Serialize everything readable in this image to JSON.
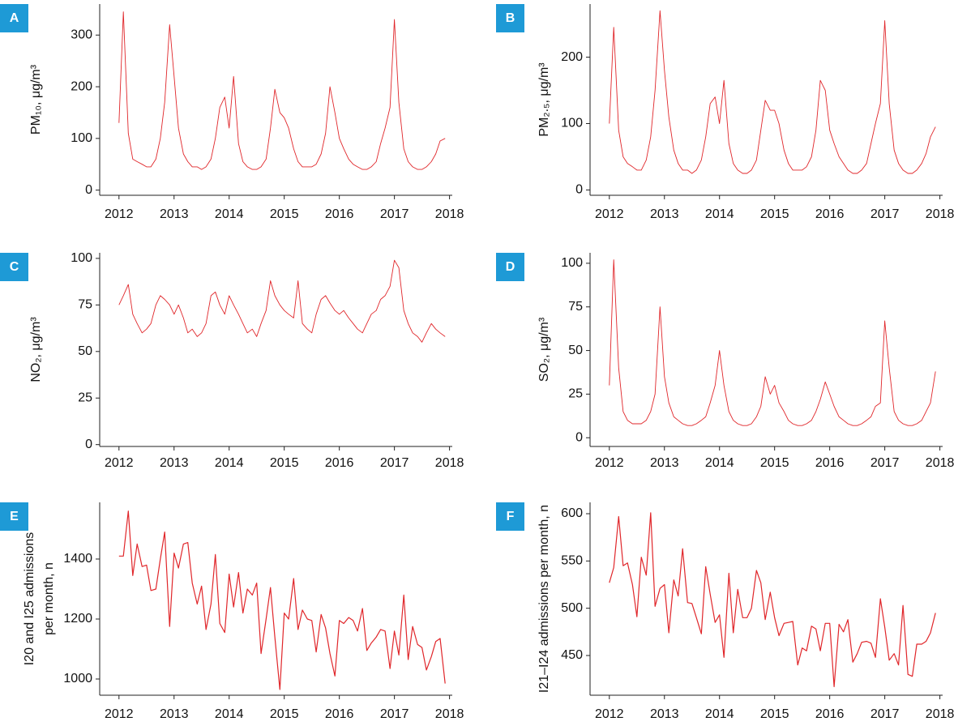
{
  "chart_data": [
    {
      "type": "line",
      "label": "A",
      "ylabel": "PM₁₀, μg/m³",
      "color": "#e0262a",
      "x": [
        2012,
        2012.08,
        2012.17,
        2012.25,
        2012.33,
        2012.42,
        2012.5,
        2012.58,
        2012.67,
        2012.75,
        2012.83,
        2012.92,
        2013,
        2013.08,
        2013.17,
        2013.25,
        2013.33,
        2013.42,
        2013.5,
        2013.58,
        2013.67,
        2013.75,
        2013.83,
        2013.92,
        2014,
        2014.08,
        2014.17,
        2014.25,
        2014.33,
        2014.42,
        2014.5,
        2014.58,
        2014.67,
        2014.75,
        2014.83,
        2014.92,
        2015,
        2015.08,
        2015.17,
        2015.25,
        2015.33,
        2015.42,
        2015.5,
        2015.58,
        2015.67,
        2015.75,
        2015.83,
        2015.92,
        2016,
        2016.08,
        2016.17,
        2016.25,
        2016.33,
        2016.42,
        2016.5,
        2016.58,
        2016.67,
        2016.75,
        2016.83,
        2016.92,
        2017,
        2017.08,
        2017.17,
        2017.25,
        2017.33,
        2017.42,
        2017.5,
        2017.58,
        2017.67,
        2017.75,
        2017.83,
        2017.92
      ],
      "values": [
        130,
        345,
        110,
        60,
        55,
        50,
        45,
        45,
        60,
        100,
        170,
        320,
        220,
        120,
        70,
        55,
        45,
        45,
        40,
        45,
        60,
        100,
        160,
        180,
        120,
        220,
        90,
        55,
        45,
        40,
        40,
        45,
        60,
        120,
        195,
        150,
        140,
        120,
        80,
        55,
        45,
        45,
        45,
        50,
        70,
        110,
        200,
        150,
        100,
        80,
        60,
        50,
        45,
        40,
        40,
        45,
        55,
        90,
        120,
        160,
        330,
        170,
        80,
        55,
        45,
        40,
        40,
        45,
        55,
        70,
        95,
        100
      ],
      "xlim": [
        2011.65,
        2018.05
      ],
      "ylim": [
        -10,
        360
      ],
      "xticks": [
        2012,
        2013,
        2014,
        2015,
        2016,
        2017,
        2018
      ],
      "yticks": [
        0,
        100,
        200,
        300
      ]
    },
    {
      "type": "line",
      "label": "B",
      "ylabel": "PM₂.₅, μg/m³",
      "color": "#e0262a",
      "x": [
        2012,
        2012.08,
        2012.17,
        2012.25,
        2012.33,
        2012.42,
        2012.5,
        2012.58,
        2012.67,
        2012.75,
        2012.83,
        2012.92,
        2013,
        2013.08,
        2013.17,
        2013.25,
        2013.33,
        2013.42,
        2013.5,
        2013.58,
        2013.67,
        2013.75,
        2013.83,
        2013.92,
        2014,
        2014.08,
        2014.17,
        2014.25,
        2014.33,
        2014.42,
        2014.5,
        2014.58,
        2014.67,
        2014.75,
        2014.83,
        2014.92,
        2015,
        2015.08,
        2015.17,
        2015.25,
        2015.33,
        2015.42,
        2015.5,
        2015.58,
        2015.67,
        2015.75,
        2015.83,
        2015.92,
        2016,
        2016.08,
        2016.17,
        2016.25,
        2016.33,
        2016.42,
        2016.5,
        2016.58,
        2016.67,
        2016.75,
        2016.83,
        2016.92,
        2017,
        2017.08,
        2017.17,
        2017.25,
        2017.33,
        2017.42,
        2017.5,
        2017.58,
        2017.67,
        2017.75,
        2017.83,
        2017.92
      ],
      "values": [
        100,
        245,
        90,
        50,
        40,
        35,
        30,
        30,
        45,
        80,
        150,
        270,
        180,
        110,
        60,
        40,
        30,
        30,
        25,
        30,
        45,
        80,
        130,
        140,
        100,
        165,
        70,
        40,
        30,
        25,
        25,
        30,
        45,
        90,
        135,
        120,
        120,
        100,
        60,
        40,
        30,
        30,
        30,
        35,
        50,
        90,
        165,
        150,
        90,
        70,
        50,
        40,
        30,
        25,
        25,
        30,
        40,
        70,
        100,
        130,
        255,
        130,
        60,
        40,
        30,
        25,
        25,
        30,
        40,
        55,
        80,
        95
      ],
      "xlim": [
        2011.65,
        2018.05
      ],
      "ylim": [
        -8,
        280
      ],
      "xticks": [
        2012,
        2013,
        2014,
        2015,
        2016,
        2017,
        2018
      ],
      "yticks": [
        0,
        100,
        200
      ]
    },
    {
      "type": "line",
      "label": "C",
      "ylabel": "NO₂, μg/m³",
      "color": "#e0262a",
      "x": [
        2012,
        2012.08,
        2012.17,
        2012.25,
        2012.33,
        2012.42,
        2012.5,
        2012.58,
        2012.67,
        2012.75,
        2012.83,
        2012.92,
        2013,
        2013.08,
        2013.17,
        2013.25,
        2013.33,
        2013.42,
        2013.5,
        2013.58,
        2013.67,
        2013.75,
        2013.83,
        2013.92,
        2014,
        2014.08,
        2014.17,
        2014.25,
        2014.33,
        2014.42,
        2014.5,
        2014.58,
        2014.67,
        2014.75,
        2014.83,
        2014.92,
        2015,
        2015.08,
        2015.17,
        2015.25,
        2015.33,
        2015.42,
        2015.5,
        2015.58,
        2015.67,
        2015.75,
        2015.83,
        2015.92,
        2016,
        2016.08,
        2016.17,
        2016.25,
        2016.33,
        2016.42,
        2016.5,
        2016.58,
        2016.67,
        2016.75,
        2016.83,
        2016.92,
        2017,
        2017.08,
        2017.17,
        2017.25,
        2017.33,
        2017.42,
        2017.5,
        2017.58,
        2017.67,
        2017.75,
        2017.83,
        2017.92
      ],
      "values": [
        75,
        80,
        86,
        70,
        65,
        60,
        62,
        65,
        75,
        80,
        78,
        75,
        70,
        75,
        68,
        60,
        62,
        58,
        60,
        65,
        80,
        82,
        75,
        70,
        80,
        75,
        70,
        65,
        60,
        62,
        58,
        65,
        72,
        88,
        80,
        75,
        72,
        70,
        68,
        88,
        65,
        62,
        60,
        70,
        78,
        80,
        76,
        72,
        70,
        72,
        68,
        65,
        62,
        60,
        65,
        70,
        72,
        78,
        80,
        85,
        99,
        95,
        72,
        65,
        60,
        58,
        55,
        60,
        65,
        62,
        60,
        58
      ],
      "xlim": [
        2011.65,
        2018.05
      ],
      "ylim": [
        -1,
        103
      ],
      "xticks": [
        2012,
        2013,
        2014,
        2015,
        2016,
        2017,
        2018
      ],
      "yticks": [
        0,
        25,
        50,
        75,
        100
      ]
    },
    {
      "type": "line",
      "label": "D",
      "ylabel": "SO₂, μg/m³",
      "color": "#e0262a",
      "x": [
        2012,
        2012.08,
        2012.17,
        2012.25,
        2012.33,
        2012.42,
        2012.5,
        2012.58,
        2012.67,
        2012.75,
        2012.83,
        2012.92,
        2013,
        2013.08,
        2013.17,
        2013.25,
        2013.33,
        2013.42,
        2013.5,
        2013.58,
        2013.67,
        2013.75,
        2013.83,
        2013.92,
        2014,
        2014.08,
        2014.17,
        2014.25,
        2014.33,
        2014.42,
        2014.5,
        2014.58,
        2014.67,
        2014.75,
        2014.83,
        2014.92,
        2015,
        2015.08,
        2015.17,
        2015.25,
        2015.33,
        2015.42,
        2015.5,
        2015.58,
        2015.67,
        2015.75,
        2015.83,
        2015.92,
        2016,
        2016.08,
        2016.17,
        2016.25,
        2016.33,
        2016.42,
        2016.5,
        2016.58,
        2016.67,
        2016.75,
        2016.83,
        2016.92,
        2017,
        2017.08,
        2017.17,
        2017.25,
        2017.33,
        2017.42,
        2017.5,
        2017.58,
        2017.67,
        2017.75,
        2017.83,
        2017.92
      ],
      "values": [
        30,
        102,
        40,
        15,
        10,
        8,
        8,
        8,
        10,
        15,
        25,
        75,
        35,
        20,
        12,
        10,
        8,
        7,
        7,
        8,
        10,
        12,
        20,
        30,
        50,
        30,
        15,
        10,
        8,
        7,
        7,
        8,
        12,
        18,
        35,
        25,
        30,
        20,
        15,
        10,
        8,
        7,
        7,
        8,
        10,
        15,
        22,
        32,
        25,
        18,
        12,
        10,
        8,
        7,
        7,
        8,
        10,
        12,
        18,
        20,
        67,
        40,
        15,
        10,
        8,
        7,
        7,
        8,
        10,
        15,
        20,
        38
      ],
      "xlim": [
        2011.65,
        2018.05
      ],
      "ylim": [
        -5,
        106
      ],
      "xticks": [
        2012,
        2013,
        2014,
        2015,
        2016,
        2017,
        2018
      ],
      "yticks": [
        0,
        25,
        50,
        75,
        100
      ]
    },
    {
      "type": "line",
      "label": "E",
      "ylabel": [
        "I20 and I25 admissions",
        "per month, n"
      ],
      "color": "#e0262a",
      "x": [
        2012,
        2012.08,
        2012.17,
        2012.25,
        2012.33,
        2012.42,
        2012.5,
        2012.58,
        2012.67,
        2012.75,
        2012.83,
        2012.92,
        2013,
        2013.08,
        2013.17,
        2013.25,
        2013.33,
        2013.42,
        2013.5,
        2013.58,
        2013.67,
        2013.75,
        2013.83,
        2013.92,
        2014,
        2014.08,
        2014.17,
        2014.25,
        2014.33,
        2014.42,
        2014.5,
        2014.58,
        2014.67,
        2014.75,
        2014.83,
        2014.92,
        2015,
        2015.08,
        2015.17,
        2015.25,
        2015.33,
        2015.42,
        2015.5,
        2015.58,
        2015.67,
        2015.75,
        2015.83,
        2015.92,
        2016,
        2016.08,
        2016.17,
        2016.25,
        2016.33,
        2016.42,
        2016.5,
        2016.58,
        2016.67,
        2016.75,
        2016.83,
        2016.92,
        2017,
        2017.08,
        2017.17,
        2017.25,
        2017.33,
        2017.42,
        2017.5,
        2017.58,
        2017.67,
        2017.75,
        2017.83,
        2017.92
      ],
      "values": [
        1410,
        1410,
        1560,
        1345,
        1450,
        1375,
        1380,
        1295,
        1300,
        1400,
        1490,
        1175,
        1420,
        1370,
        1450,
        1455,
        1320,
        1250,
        1310,
        1165,
        1250,
        1415,
        1185,
        1155,
        1350,
        1240,
        1355,
        1220,
        1300,
        1280,
        1320,
        1085,
        1200,
        1305,
        1140,
        965,
        1220,
        1200,
        1335,
        1165,
        1230,
        1200,
        1195,
        1090,
        1215,
        1170,
        1085,
        1010,
        1195,
        1185,
        1205,
        1195,
        1160,
        1235,
        1095,
        1120,
        1140,
        1165,
        1160,
        1035,
        1160,
        1080,
        1280,
        1065,
        1175,
        1115,
        1105,
        1030,
        1075,
        1125,
        1135,
        985
      ],
      "xlim": [
        2011.65,
        2018.05
      ],
      "ylim": [
        946,
        1589
      ],
      "xticks": [
        2012,
        2013,
        2014,
        2015,
        2016,
        2017,
        2018
      ],
      "yticks": [
        1000,
        1200,
        1400
      ]
    },
    {
      "type": "line",
      "label": "F",
      "ylabel": "I21–I24 admissions per month, n",
      "color": "#e0262a",
      "x": [
        2012,
        2012.08,
        2012.17,
        2012.25,
        2012.33,
        2012.42,
        2012.5,
        2012.58,
        2012.67,
        2012.75,
        2012.83,
        2012.92,
        2013,
        2013.08,
        2013.17,
        2013.25,
        2013.33,
        2013.42,
        2013.5,
        2013.58,
        2013.67,
        2013.75,
        2013.83,
        2013.92,
        2014,
        2014.08,
        2014.17,
        2014.25,
        2014.33,
        2014.42,
        2014.5,
        2014.58,
        2014.67,
        2014.75,
        2014.83,
        2014.92,
        2015,
        2015.08,
        2015.17,
        2015.25,
        2015.33,
        2015.42,
        2015.5,
        2015.58,
        2015.67,
        2015.75,
        2015.83,
        2015.92,
        2016,
        2016.08,
        2016.17,
        2016.25,
        2016.33,
        2016.42,
        2016.5,
        2016.58,
        2016.67,
        2016.75,
        2016.83,
        2016.92,
        2017,
        2017.08,
        2017.17,
        2017.25,
        2017.33,
        2017.42,
        2017.5,
        2017.58,
        2017.67,
        2017.75,
        2017.83,
        2017.92
      ],
      "values": [
        527,
        543,
        597,
        545,
        548,
        525,
        491,
        554,
        535,
        601,
        502,
        521,
        525,
        474,
        530,
        513,
        563,
        506,
        505,
        490,
        473,
        544,
        515,
        485,
        493,
        448,
        537,
        474,
        520,
        490,
        490,
        500,
        540,
        527,
        488,
        517,
        490,
        471,
        484,
        485,
        486,
        440,
        458,
        455,
        481,
        478,
        455,
        484,
        484,
        417,
        483,
        475,
        488,
        443,
        452,
        464,
        465,
        463,
        448,
        510,
        480,
        445,
        452,
        440,
        503,
        430,
        428,
        462,
        462,
        465,
        474,
        495
      ],
      "xlim": [
        2011.65,
        2018.05
      ],
      "ylim": [
        408,
        612
      ],
      "xticks": [
        2012,
        2013,
        2014,
        2015,
        2016,
        2017,
        2018
      ],
      "yticks": [
        450,
        500,
        550,
        600
      ]
    }
  ]
}
